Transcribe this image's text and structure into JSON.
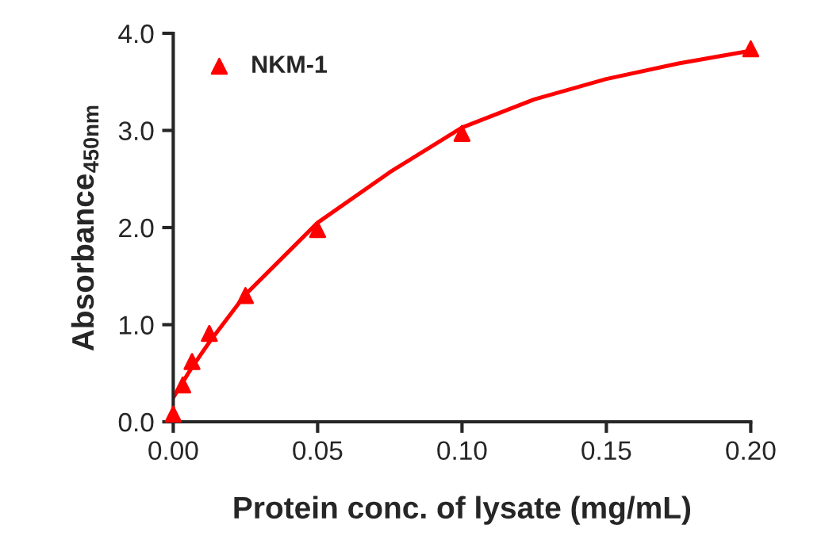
{
  "chart_data": {
    "type": "scatter",
    "xlabel": "Protein conc. of lysate (mg/mL)",
    "ylabel": "Absorbance$_{450nm}$",
    "series": [
      {
        "name": "NKM-1",
        "color": "#ff0000",
        "marker": "triangle",
        "x": [
          0.0,
          0.0033,
          0.0065,
          0.0125,
          0.025,
          0.05,
          0.1,
          0.2
        ],
        "values": [
          0.08,
          0.38,
          0.62,
          0.91,
          1.3,
          1.98,
          2.97,
          3.84
        ]
      },
      {
        "type": "line",
        "color": "#ff0000",
        "marker": "none",
        "line_style": "solid",
        "x": [
          0.0,
          0.00625,
          0.0125,
          0.025,
          0.05,
          0.075,
          0.1,
          0.125,
          0.15,
          0.175,
          0.2
        ],
        "values": [
          0.25,
          0.55,
          0.82,
          1.31,
          2.05,
          2.57,
          3.03,
          3.32,
          3.53,
          3.69,
          3.82
        ]
      }
    ],
    "xlim": [
      0,
      0.2
    ],
    "xticks": [
      {
        "value": 0,
        "label": "0.00"
      },
      0.05,
      {
        "value": 0.1,
        "label": "0.10"
      },
      0.15,
      {
        "value": 0.2,
        "label": "0.20"
      }
    ],
    "ylim": [
      0,
      4
    ],
    "yticks": [
      {
        "value": 0,
        "label": "0.0"
      },
      {
        "value": 1,
        "label": "1.0"
      },
      {
        "value": 2,
        "label": "2.0"
      },
      {
        "value": 3,
        "label": "3.0"
      },
      {
        "value": 4,
        "label": "4.0"
      }
    ],
    "grid": false,
    "legend": "top left"
  }
}
